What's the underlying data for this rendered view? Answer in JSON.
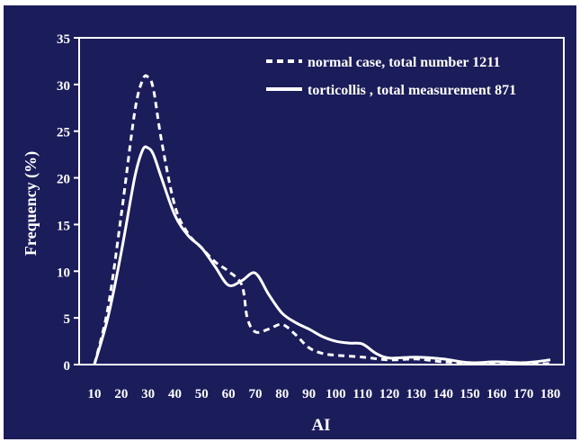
{
  "chart_data": {
    "type": "line",
    "xlabel": "AI",
    "ylabel": "Frequency (%)",
    "xlim": [
      10,
      180
    ],
    "ylim": [
      0,
      35
    ],
    "x_ticks": [
      "10",
      "20",
      "30",
      "40",
      "50",
      "60",
      "70",
      "80",
      "90",
      "100",
      "110",
      "120",
      "130",
      "140",
      "150",
      "160",
      "170",
      "180"
    ],
    "y_ticks": [
      "0",
      "5",
      "10",
      "15",
      "20",
      "25",
      "30",
      "35"
    ],
    "grid": false,
    "legend_position": "top-right",
    "colors": {
      "background": "#1b1c5a",
      "foreground": "#ffffff"
    },
    "series": [
      {
        "name": "normal case, total  number 1211",
        "line_style": "dashed",
        "points": [
          [
            10,
            0
          ],
          [
            15,
            6
          ],
          [
            20,
            16
          ],
          [
            25,
            27
          ],
          [
            28,
            30.5
          ],
          [
            30,
            30.8
          ],
          [
            32,
            29.5
          ],
          [
            35,
            24
          ],
          [
            40,
            17
          ],
          [
            45,
            14
          ],
          [
            50,
            12.5
          ],
          [
            55,
            11
          ],
          [
            60,
            10
          ],
          [
            65,
            8.5
          ],
          [
            67,
            5
          ],
          [
            70,
            3.5
          ],
          [
            75,
            3.8
          ],
          [
            80,
            4.3
          ],
          [
            85,
            3.2
          ],
          [
            90,
            1.8
          ],
          [
            95,
            1.2
          ],
          [
            100,
            1
          ],
          [
            110,
            0.8
          ],
          [
            120,
            0.5
          ],
          [
            130,
            0.6
          ],
          [
            140,
            0.3
          ],
          [
            150,
            0.2
          ],
          [
            160,
            0.1
          ],
          [
            170,
            0.1
          ],
          [
            180,
            0.1
          ]
        ]
      },
      {
        "name": "torticollis , total measurement 871",
        "line_style": "solid",
        "points": [
          [
            10,
            0
          ],
          [
            15,
            5
          ],
          [
            20,
            12
          ],
          [
            25,
            20
          ],
          [
            28,
            23
          ],
          [
            30,
            23.2
          ],
          [
            32,
            22.5
          ],
          [
            35,
            20
          ],
          [
            40,
            16
          ],
          [
            45,
            13.8
          ],
          [
            50,
            12.5
          ],
          [
            55,
            10.5
          ],
          [
            60,
            8.5
          ],
          [
            65,
            9
          ],
          [
            70,
            9.8
          ],
          [
            75,
            7.5
          ],
          [
            80,
            5.5
          ],
          [
            85,
            4.5
          ],
          [
            90,
            3.8
          ],
          [
            95,
            3
          ],
          [
            100,
            2.5
          ],
          [
            105,
            2.3
          ],
          [
            110,
            2.2
          ],
          [
            115,
            1.2
          ],
          [
            120,
            0.7
          ],
          [
            130,
            0.8
          ],
          [
            140,
            0.6
          ],
          [
            150,
            0.2
          ],
          [
            160,
            0.3
          ],
          [
            170,
            0.2
          ],
          [
            180,
            0.5
          ]
        ]
      }
    ]
  }
}
